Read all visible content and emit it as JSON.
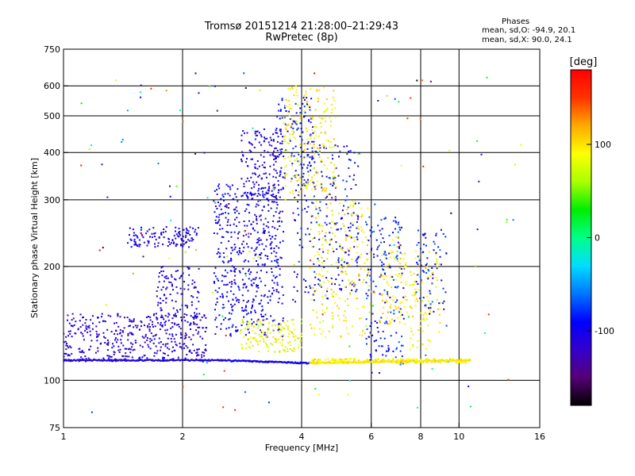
{
  "header": {
    "title_line1": "Tromsø 20151214 21:28:00–21:29:43",
    "title_line2": "RwPretec (8p)",
    "phase_title": "Phases",
    "phase_o": "mean, sd,O: -94.9, 20.1",
    "phase_x": "mean, sd,X:  90.0, 24.1"
  },
  "colorbar": {
    "unit_label": "[deg]",
    "ticks": [
      {
        "value": 100,
        "label": "100"
      },
      {
        "value": 0,
        "label": "0"
      },
      {
        "value": -100,
        "label": "-100"
      }
    ],
    "range": [
      -180,
      180
    ]
  },
  "chart_data": {
    "type": "scatter",
    "title": "Tromsø 20151214 21:28:00–21:29:43",
    "subtitle": "RwPretec (8p)",
    "xlabel": "Frequency [MHz]",
    "ylabel": "Stationary phase Virtual Height [km]",
    "x_scale": "log",
    "y_scale": "log",
    "xlim": [
      1,
      16
    ],
    "ylim": [
      75,
      750
    ],
    "x_ticks": [
      1,
      2,
      4,
      6,
      8,
      10,
      16
    ],
    "y_ticks": [
      75,
      100,
      200,
      300,
      400,
      500,
      600,
      750
    ],
    "x_gridlines": [
      2,
      4,
      6,
      8,
      10
    ],
    "y_gridlines": [
      100,
      200,
      300,
      400,
      500,
      600
    ],
    "color_by": "phase_deg",
    "colormap": [
      "#000000",
      "#550077",
      "#3300cc",
      "#0000ff",
      "#0077ff",
      "#00ddff",
      "#00ff88",
      "#00ee00",
      "#aaff00",
      "#ffff00",
      "#ffaa00",
      "#ff3300",
      "#ff0000"
    ],
    "point_clusters": [
      {
        "x": [
          1.0,
          2.3
        ],
        "y": [
          112,
          150
        ],
        "phase": [
          -130,
          -95
        ],
        "n": 420
      },
      {
        "x": [
          1.45,
          2.2
        ],
        "y": [
          225,
          255
        ],
        "phase": [
          -120,
          -90
        ],
        "n": 120
      },
      {
        "x": [
          1.7,
          2.2
        ],
        "y": [
          140,
          200
        ],
        "phase": [
          -120,
          -95
        ],
        "n": 120
      },
      {
        "x": [
          2.4,
          3.6
        ],
        "y": [
          130,
          330
        ],
        "phase": [
          -120,
          -80
        ],
        "n": 520
      },
      {
        "x": [
          2.8,
          3.6
        ],
        "y": [
          300,
          460
        ],
        "phase": [
          -125,
          -95
        ],
        "n": 160
      },
      {
        "x": [
          3.4,
          4.3
        ],
        "y": [
          340,
          560
        ],
        "phase": [
          -110,
          -70
        ],
        "n": 110
      },
      {
        "x": [
          3.8,
          5.6
        ],
        "y": [
          160,
          420
        ],
        "phase": [
          -120,
          -70
        ],
        "n": 260
      },
      {
        "x": [
          3.6,
          4.9
        ],
        "y": [
          300,
          600
        ],
        "phase": [
          70,
          115
        ],
        "n": 220
      },
      {
        "x": [
          2.8,
          4.0
        ],
        "y": [
          118,
          145
        ],
        "phase": [
          60,
          110
        ],
        "n": 150
      },
      {
        "x": [
          4.2,
          6.0
        ],
        "y": [
          130,
          300
        ],
        "phase": [
          70,
          115
        ],
        "n": 220
      },
      {
        "x": [
          5.8,
          7.3
        ],
        "y": [
          110,
          270
        ],
        "phase": [
          -110,
          -60
        ],
        "n": 170
      },
      {
        "x": [
          6.3,
          7.4
        ],
        "y": [
          140,
          240
        ],
        "phase": [
          80,
          115
        ],
        "n": 90
      },
      {
        "x": [
          7.5,
          9.0
        ],
        "y": [
          120,
          220
        ],
        "phase": [
          70,
          110
        ],
        "n": 90
      },
      {
        "x": [
          7.8,
          9.3
        ],
        "y": [
          150,
          250
        ],
        "phase": [
          -110,
          -60
        ],
        "n": 70
      },
      {
        "x": [
          4.2,
          10.5
        ],
        "y": [
          111,
          114
        ],
        "phase": [
          80,
          110
        ],
        "n": 200
      },
      {
        "x": [
          1.1,
          15.5
        ],
        "y": [
          80,
          650
        ],
        "phase": [
          -180,
          180
        ],
        "n": 140
      }
    ],
    "trace_lines": [
      {
        "x": [
          1.0,
          2.5
        ],
        "y": [
          113,
          113
        ],
        "phase": [
          -120,
          -95
        ],
        "n": 200
      },
      {
        "x": [
          2.5,
          4.2
        ],
        "y": [
          113,
          111
        ],
        "phase": [
          -120,
          -80
        ],
        "n": 140
      },
      {
        "x": [
          4.2,
          10.7
        ],
        "y": [
          111,
          113
        ],
        "phase": [
          75,
          115
        ],
        "n": 260
      }
    ]
  }
}
